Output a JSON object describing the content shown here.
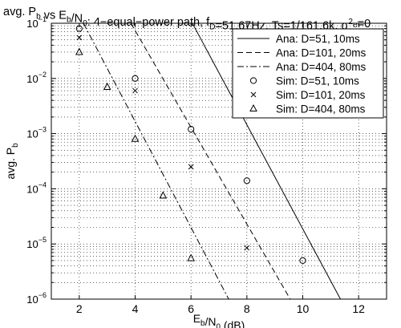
{
  "chart_data": {
    "type": "line",
    "title": {
      "parts": [
        {
          "t": "avg. P"
        },
        {
          "t": "b",
          "sub": true
        },
        {
          "t": " vs E"
        },
        {
          "t": "b",
          "sub": true
        },
        {
          "t": "/N"
        },
        {
          "t": "0",
          "sub": true
        },
        {
          "t": ": 4−equal−power path, f"
        },
        {
          "t": "D",
          "sub": true
        },
        {
          "t": "=51.67Hz, Ts=1/161.6k, σ"
        },
        {
          "t": "2",
          "sup": true
        },
        {
          "t": "e",
          "sub": true
        },
        {
          "t": "=0"
        }
      ]
    },
    "xlabel": {
      "parts": [
        {
          "t": "E"
        },
        {
          "t": "b",
          "sub": true
        },
        {
          "t": "/N"
        },
        {
          "t": "0",
          "sub": true
        },
        {
          "t": " (dB)"
        }
      ]
    },
    "ylabel": {
      "parts": [
        {
          "t": "avg. P"
        },
        {
          "t": "b",
          "sub": true
        }
      ]
    },
    "xlim": [
      1,
      13
    ],
    "ylim": [
      1e-06,
      0.1
    ],
    "yscale": "log",
    "grid": true,
    "xticks": [
      2,
      4,
      6,
      8,
      10,
      12
    ],
    "yticks": [
      {
        "v": 1e-06,
        "base": "10",
        "exp": "−6"
      },
      {
        "v": 1e-05,
        "base": "10",
        "exp": "−5"
      },
      {
        "v": 0.0001,
        "base": "10",
        "exp": "−4"
      },
      {
        "v": 0.001,
        "base": "10",
        "exp": "−3"
      },
      {
        "v": 0.01,
        "base": "10",
        "exp": "−2"
      },
      {
        "v": 0.1,
        "base": "10",
        "exp": "−1"
      }
    ],
    "legend_position": "top-right",
    "series": [
      {
        "name": "Ana: D=51, 10ms",
        "kind": "line",
        "dash": "solid",
        "x": [
          6.05,
          11.35
        ],
        "y": [
          0.1,
          1e-06
        ]
      },
      {
        "name": "Ana: D=101, 20ms",
        "kind": "line",
        "dash": "dashed",
        "x": [
          3.85,
          9.55
        ],
        "y": [
          0.1,
          1e-06
        ]
      },
      {
        "name": "Ana: D=404, 80ms",
        "kind": "line",
        "dash": "dashdot",
        "x": [
          2.15,
          7.35
        ],
        "y": [
          0.1,
          1e-06
        ]
      },
      {
        "name": "Sim: D=51, 10ms",
        "kind": "marker",
        "marker": "circle",
        "x": [
          2,
          4,
          6,
          8,
          10
        ],
        "y": [
          0.08,
          0.01,
          0.0012,
          0.00014,
          5e-06
        ]
      },
      {
        "name": "Sim: D=101, 20ms",
        "kind": "marker",
        "marker": "x",
        "x": [
          2,
          4,
          6,
          8
        ],
        "y": [
          0.055,
          0.006,
          0.00025,
          8.5e-06
        ]
      },
      {
        "name": "Sim: D=404, 80ms",
        "kind": "marker",
        "marker": "triangle",
        "x": [
          2,
          3,
          4,
          5,
          6
        ],
        "y": [
          0.03,
          0.007,
          0.0008,
          7.5e-05,
          5.5e-06
        ]
      }
    ]
  }
}
